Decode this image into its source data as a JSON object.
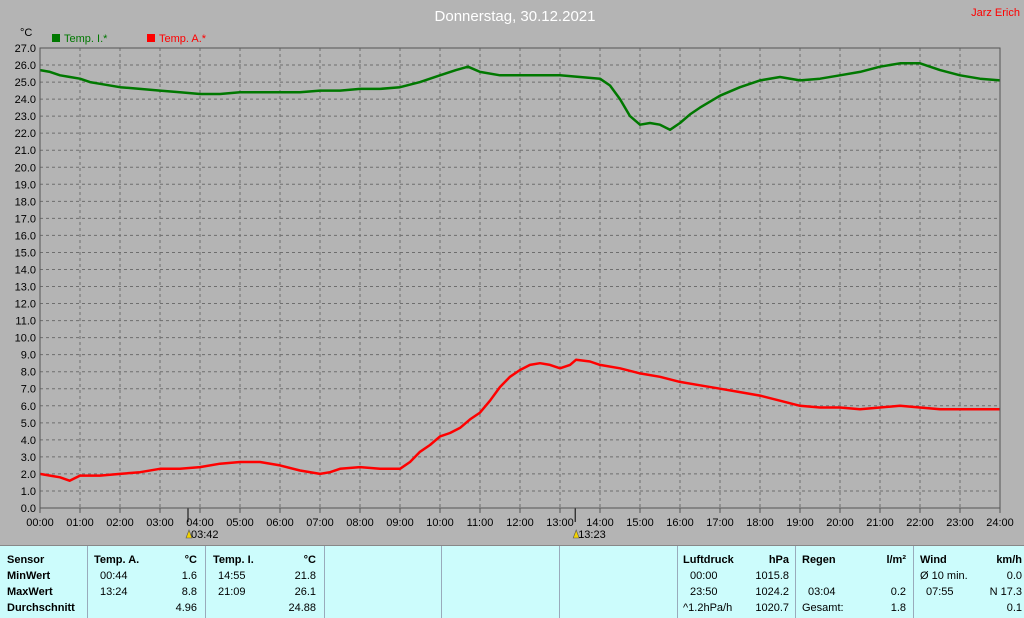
{
  "chart_data": {
    "type": "line",
    "title": "Donnerstag, 30.12.2021",
    "author": "Jarz Erich",
    "ylabel": "°C",
    "ylim": [
      0,
      27
    ],
    "y_step": 1,
    "y_ticks": [
      "0.0",
      "1.0",
      "2.0",
      "3.0",
      "4.0",
      "5.0",
      "6.0",
      "7.0",
      "8.0",
      "9.0",
      "10.0",
      "11.0",
      "12.0",
      "13.0",
      "14.0",
      "15.0",
      "16.0",
      "17.0",
      "18.0",
      "19.0",
      "20.0",
      "21.0",
      "22.0",
      "23.0",
      "24.0",
      "25.0",
      "26.0",
      "27.0"
    ],
    "xlim": [
      0,
      24
    ],
    "x_ticks": [
      "00:00",
      "01:00",
      "02:00",
      "03:00",
      "04:00",
      "05:00",
      "06:00",
      "07:00",
      "08:00",
      "09:00",
      "10:00",
      "11:00",
      "12:00",
      "13:00",
      "14:00",
      "15:00",
      "16:00",
      "17:00",
      "18:00",
      "19:00",
      "20:00",
      "21:00",
      "22:00",
      "23:00",
      "24:00"
    ],
    "grid": true,
    "legend_position": "top-left",
    "markers": [
      {
        "x": 3.7,
        "label": "03:42",
        "icon": "sunrise-icon"
      },
      {
        "x": 13.38,
        "label": "13:23",
        "icon": "sunset-icon"
      }
    ],
    "series": [
      {
        "name": "Temp. I.*",
        "color": "#007800",
        "x": [
          0,
          0.25,
          0.5,
          0.75,
          1,
          1.25,
          1.5,
          2,
          2.5,
          3,
          3.5,
          4,
          4.5,
          5,
          5.5,
          6,
          6.5,
          7,
          7.5,
          8,
          8.5,
          9,
          9.5,
          10,
          10.4,
          10.7,
          11,
          11.5,
          12,
          12.5,
          13,
          13.5,
          14,
          14.25,
          14.5,
          14.75,
          15,
          15.25,
          15.5,
          15.75,
          16,
          16.25,
          16.5,
          17,
          17.5,
          18,
          18.5,
          19,
          19.5,
          20,
          20.5,
          21,
          21.5,
          22,
          22.5,
          23,
          23.5,
          24
        ],
        "values": [
          25.7,
          25.6,
          25.4,
          25.3,
          25.2,
          25.0,
          24.9,
          24.7,
          24.6,
          24.5,
          24.4,
          24.3,
          24.3,
          24.4,
          24.4,
          24.4,
          24.4,
          24.5,
          24.5,
          24.6,
          24.6,
          24.7,
          25.0,
          25.4,
          25.7,
          25.9,
          25.6,
          25.4,
          25.4,
          25.4,
          25.4,
          25.3,
          25.2,
          24.8,
          24.0,
          23.0,
          22.5,
          22.6,
          22.5,
          22.2,
          22.6,
          23.1,
          23.5,
          24.2,
          24.7,
          25.1,
          25.3,
          25.1,
          25.2,
          25.4,
          25.6,
          25.9,
          26.1,
          26.1,
          25.7,
          25.4,
          25.2,
          25.1
        ]
      },
      {
        "name": "Temp. A.*",
        "color": "#ff0000",
        "x": [
          0,
          0.25,
          0.5,
          0.74,
          1,
          1.5,
          2,
          2.5,
          3,
          3.5,
          4,
          4.5,
          5,
          5.5,
          6,
          6.5,
          7,
          7.25,
          7.5,
          8,
          8.5,
          9,
          9.25,
          9.5,
          9.75,
          10,
          10.25,
          10.5,
          10.75,
          11,
          11.25,
          11.5,
          11.75,
          12,
          12.25,
          12.5,
          12.75,
          13,
          13.25,
          13.4,
          13.75,
          14,
          14.5,
          15,
          15.5,
          16,
          16.5,
          17,
          17.5,
          18,
          18.5,
          19,
          19.5,
          20,
          20.5,
          21,
          21.5,
          22,
          22.5,
          23,
          23.5,
          24
        ],
        "values": [
          2.0,
          1.9,
          1.8,
          1.6,
          1.9,
          1.9,
          2.0,
          2.1,
          2.3,
          2.3,
          2.4,
          2.6,
          2.7,
          2.7,
          2.5,
          2.2,
          2.0,
          2.1,
          2.3,
          2.4,
          2.3,
          2.3,
          2.7,
          3.3,
          3.7,
          4.2,
          4.4,
          4.7,
          5.2,
          5.6,
          6.3,
          7.1,
          7.7,
          8.1,
          8.4,
          8.5,
          8.4,
          8.2,
          8.4,
          8.7,
          8.6,
          8.4,
          8.2,
          7.9,
          7.7,
          7.4,
          7.2,
          7.0,
          6.8,
          6.6,
          6.3,
          6.0,
          5.9,
          5.9,
          5.8,
          5.9,
          6.0,
          5.9,
          5.8,
          5.8,
          5.8,
          5.8
        ]
      }
    ]
  },
  "stats": {
    "sensor_header": "Sensor",
    "row_labels": [
      "MinWert",
      "MaxWert",
      "Durchschnitt"
    ],
    "temp_a": {
      "header": "Temp. A.",
      "unit": "°C",
      "min_time": "00:44",
      "min_value": "1.6",
      "max_time": "13:24",
      "max_value": "8.8",
      "avg_value": "4.96"
    },
    "temp_i": {
      "header": "Temp. I.",
      "unit": "°C",
      "min_time": "14:55",
      "min_value": "21.8",
      "max_time": "21:09",
      "max_value": "26.1",
      "avg_value": "24.88"
    },
    "pressure": {
      "header": "Luftdruck",
      "unit": "hPa",
      "min_time": "00:00",
      "min_value": "1015.8",
      "max_time": "23:50",
      "max_value": "1024.2",
      "trend_label": "^1.2hPa/h",
      "trend_value": "1020.7"
    },
    "rain": {
      "header": "Regen",
      "unit": "l/m²",
      "max_time": "03:04",
      "max_value": "0.2",
      "total_label": "Gesamt:",
      "total_value": "1.8"
    },
    "wind": {
      "header": "Wind",
      "unit": "km/h",
      "avg_label": "Ø 10 min.",
      "avg_value": "0.0",
      "max_time": "07:55",
      "max_value": "N 17.3",
      "current_value": "0.1"
    }
  }
}
